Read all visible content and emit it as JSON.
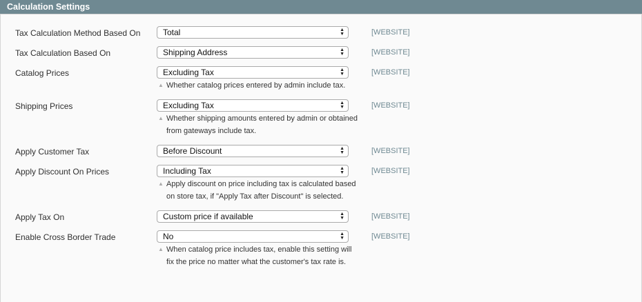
{
  "section": {
    "title": "Calculation Settings"
  },
  "fields": [
    {
      "label": "Tax Calculation Method Based On",
      "value": "Total",
      "scope": "[WEBSITE]",
      "note": ""
    },
    {
      "label": "Tax Calculation Based On",
      "value": "Shipping Address",
      "scope": "[WEBSITE]",
      "note": ""
    },
    {
      "label": "Catalog Prices",
      "value": "Excluding Tax",
      "scope": "[WEBSITE]",
      "note": "Whether catalog prices entered by admin include tax."
    },
    {
      "label": "Shipping Prices",
      "value": "Excluding Tax",
      "scope": "[WEBSITE]",
      "note": "Whether shipping amounts entered by admin or obtained from gateways include tax."
    },
    {
      "label": "Apply Customer Tax",
      "value": "Before Discount",
      "scope": "[WEBSITE]",
      "note": ""
    },
    {
      "label": "Apply Discount On Prices",
      "value": "Including Tax",
      "scope": "[WEBSITE]",
      "note": "Apply discount on price including tax is calculated based on store tax, if \"Apply Tax after Discount\" is selected."
    },
    {
      "label": "Apply Tax On",
      "value": "Custom price if available",
      "scope": "[WEBSITE]",
      "note": ""
    },
    {
      "label": "Enable Cross Border Trade",
      "value": "No",
      "scope": "[WEBSITE]",
      "note": "When catalog price includes tax, enable this setting will fix the price no matter what the customer's tax rate is."
    }
  ],
  "colors": {
    "header": "#6f8992",
    "scope": "#6f8992"
  },
  "icons": {
    "select": "up-down-arrows-icon",
    "note": "triangle-up-icon"
  }
}
